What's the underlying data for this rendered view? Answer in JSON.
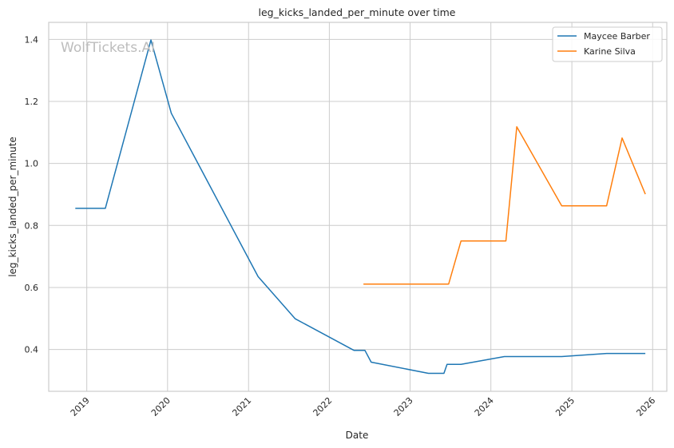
{
  "chart_data": {
    "type": "line",
    "title": "leg_kicks_landed_per_minute over time",
    "xlabel": "Date",
    "ylabel": "leg_kicks_landed_per_minute",
    "watermark": "WolfTickets.AI",
    "x_tick_labels": [
      "2019",
      "2020",
      "2021",
      "2022",
      "2023",
      "2024",
      "2025",
      "2026"
    ],
    "y_tick_labels": [
      "0.4",
      "0.6",
      "0.8",
      "1.0",
      "1.2",
      "1.4"
    ],
    "xlim": [
      "2018-07-13",
      "2026-03-06"
    ],
    "ylim": [
      0.265,
      1.455
    ],
    "grid": true,
    "legend_position": "top-right",
    "series": [
      {
        "name": "Maycee Barber",
        "color": "#1f77b4",
        "points": [
          {
            "x": "2018-11-10",
            "y": 0.855
          },
          {
            "x": "2019-03-26",
            "y": 0.855
          },
          {
            "x": "2019-10-18",
            "y": 1.398
          },
          {
            "x": "2020-01-18",
            "y": 1.162
          },
          {
            "x": "2021-02-13",
            "y": 0.635
          },
          {
            "x": "2021-07-31",
            "y": 0.499
          },
          {
            "x": "2022-04-23",
            "y": 0.397
          },
          {
            "x": "2022-06-11",
            "y": 0.397
          },
          {
            "x": "2022-07-09",
            "y": 0.359
          },
          {
            "x": "2023-03-25",
            "y": 0.323
          },
          {
            "x": "2023-06-03",
            "y": 0.323
          },
          {
            "x": "2023-06-17",
            "y": 0.352
          },
          {
            "x": "2023-08-19",
            "y": 0.352
          },
          {
            "x": "2024-03-02",
            "y": 0.377
          },
          {
            "x": "2024-11-16",
            "y": 0.377
          },
          {
            "x": "2025-06-07",
            "y": 0.387
          },
          {
            "x": "2025-11-29",
            "y": 0.387
          }
        ]
      },
      {
        "name": "Karine Silva",
        "color": "#ff7f0e",
        "points": [
          {
            "x": "2022-06-04",
            "y": 0.611
          },
          {
            "x": "2023-06-24",
            "y": 0.611
          },
          {
            "x": "2023-08-19",
            "y": 0.75
          },
          {
            "x": "2024-03-09",
            "y": 0.75
          },
          {
            "x": "2024-04-27",
            "y": 1.118
          },
          {
            "x": "2024-11-16",
            "y": 0.863
          },
          {
            "x": "2025-06-07",
            "y": 0.863
          },
          {
            "x": "2025-08-16",
            "y": 1.082
          },
          {
            "x": "2025-11-29",
            "y": 0.901
          }
        ]
      }
    ]
  }
}
